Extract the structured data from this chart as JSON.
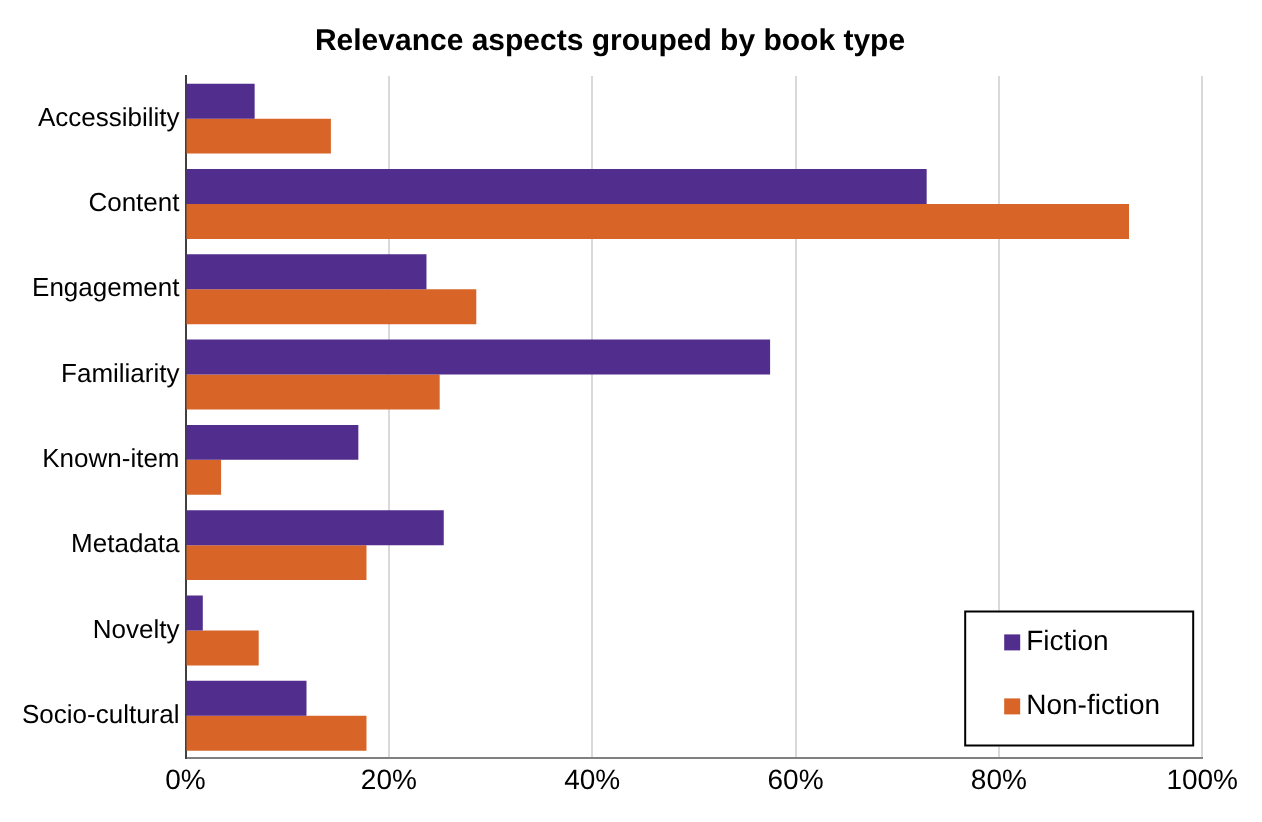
{
  "chart_data": {
    "type": "bar",
    "orientation": "horizontal",
    "title": "Relevance aspects grouped by book type",
    "categories": [
      "Accessibility",
      "Content",
      "Engagement",
      "Familiarity",
      "Known-item",
      "Metadata",
      "Novelty",
      "Socio-cultural"
    ],
    "series": [
      {
        "name": "Fiction",
        "color": "#512d8d",
        "values": [
          6.8,
          72.9,
          23.7,
          57.5,
          17.0,
          25.4,
          1.7,
          11.9
        ]
      },
      {
        "name": "Non-fiction",
        "color": "#d86428",
        "values": [
          14.3,
          92.8,
          28.6,
          25.0,
          3.5,
          17.8,
          7.2,
          17.8
        ]
      }
    ],
    "xlim": [
      0,
      100
    ],
    "xticks": [
      {
        "value": 0,
        "label": "0%"
      },
      {
        "value": 20,
        "label": "20%"
      },
      {
        "value": 40,
        "label": "40%"
      },
      {
        "value": 60,
        "label": "60%"
      },
      {
        "value": 80,
        "label": "80%"
      },
      {
        "value": 100,
        "label": "100%"
      }
    ],
    "grid": "x",
    "legend": "bottom right"
  }
}
